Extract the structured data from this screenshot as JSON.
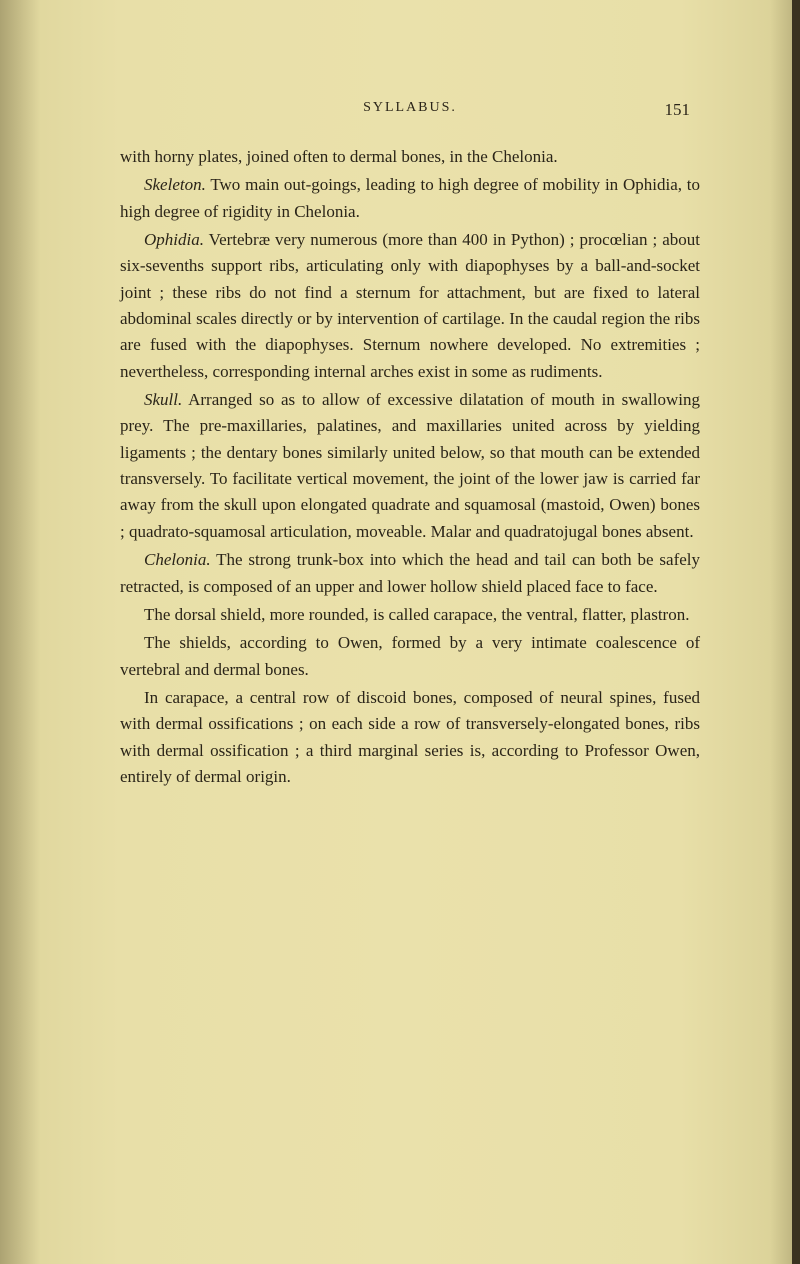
{
  "page": {
    "running_head": "SYLLABUS.",
    "number": "151"
  },
  "paragraphs": {
    "p1a": "with horny plates, joined often to dermal bones, in the Chelonia.",
    "p2_lead": "Skeleton.",
    "p2": " Two main out-goings, leading to high degree of mobility in Ophidia, to high degree of rigidity in Chelonia.",
    "p3_lead": "Ophidia.",
    "p3": " Vertebræ very numerous (more than 400 in Python) ; procœlian ; about six-sevenths support ribs, articulating only with diapophyses by a ball-and-socket joint ; these ribs do not find a sternum for attachment, but are fixed to lateral abdominal scales directly or by intervention of cartilage. In the caudal region the ribs are fused with the diapophyses. Sternum nowhere developed. No extremities ; nevertheless, corresponding internal arches exist in some as rudiments.",
    "p4_lead": "Skull.",
    "p4": " Arranged so as to allow of excessive dilatation of mouth in swallowing prey. The pre-maxillaries, palatines, and maxillaries united across by yielding ligaments ; the dentary bones similarly united below, so that mouth can be extended transversely. To facilitate vertical movement, the joint of the lower jaw is carried far away from the skull upon elongated quadrate and squamosal (mastoid, Owen) bones ; quadrato-squamosal articulation, moveable. Malar and quadratojugal bones absent.",
    "p5_lead": "Chelonia.",
    "p5": " The strong trunk-box into which the head and tail can both be safely retracted, is composed of an upper and lower hollow shield placed face to face.",
    "p6": "The dorsal shield, more rounded, is called carapace, the ventral, flatter, plastron.",
    "p7": "The shields, according to Owen, formed by a very intimate coalescence of vertebral and dermal bones.",
    "p8": "In carapace, a central row of discoid bones, composed of neural spines, fused with dermal ossifications ; on each side a row of transversely-elongated bones, ribs with dermal ossification ; a third marginal series is, according to Professor Owen, entirely of dermal origin."
  },
  "colors": {
    "paper": "#e8dfa8",
    "text": "#2a2418"
  }
}
